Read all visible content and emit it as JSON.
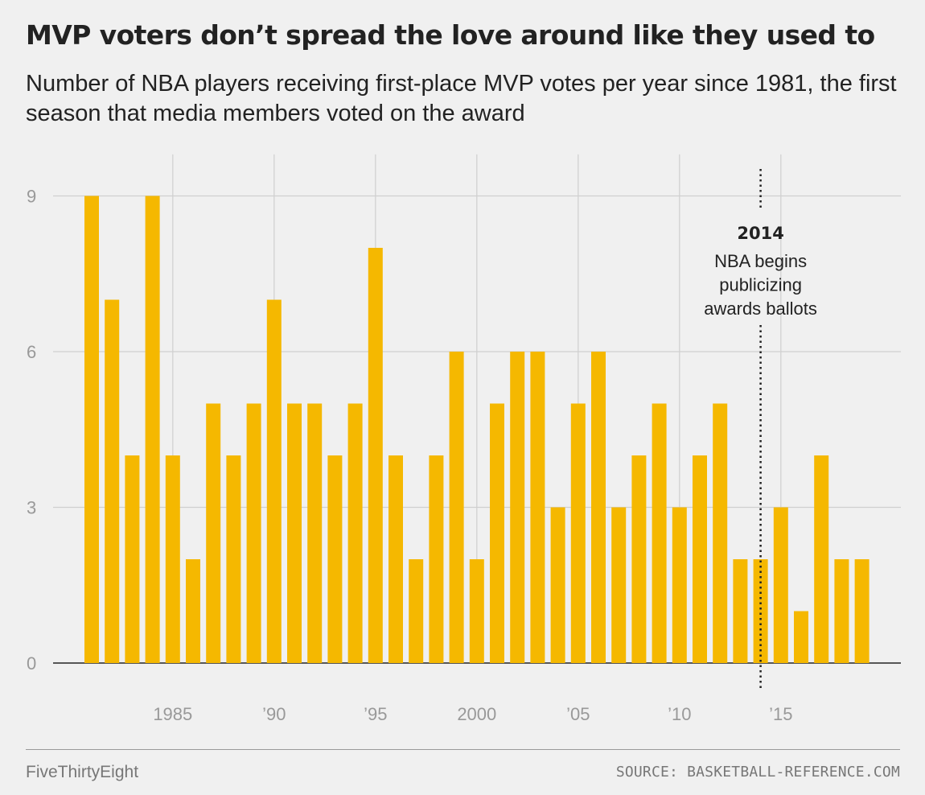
{
  "header": {
    "title": "MVP voters don’t spread the love around like they used to",
    "subtitle": "Number of NBA players receiving first-place MVP votes per year since 1981, the first season that media members voted on the award"
  },
  "footer": {
    "brand": "FiveThirtyEight",
    "source": "SOURCE: BASKETBALL-REFERENCE.COM"
  },
  "chart_data": {
    "type": "bar",
    "x": [
      1981,
      1982,
      1983,
      1984,
      1985,
      1986,
      1987,
      1988,
      1989,
      1990,
      1991,
      1992,
      1993,
      1994,
      1995,
      1996,
      1997,
      1998,
      1999,
      2000,
      2001,
      2002,
      2003,
      2004,
      2005,
      2006,
      2007,
      2008,
      2009,
      2010,
      2011,
      2012,
      2013,
      2014,
      2015,
      2016,
      2017,
      2018,
      2019
    ],
    "values": [
      9,
      7,
      4,
      9,
      4,
      2,
      5,
      4,
      5,
      7,
      5,
      5,
      4,
      5,
      8,
      4,
      2,
      4,
      6,
      2,
      5,
      6,
      6,
      3,
      5,
      6,
      3,
      4,
      5,
      3,
      4,
      5,
      2,
      2,
      3,
      1,
      4,
      2,
      2
    ],
    "bar_color": "#f5b800",
    "ylim": [
      0,
      9.8
    ],
    "y_ticks": [
      {
        "value": 0,
        "label": "0"
      },
      {
        "value": 3,
        "label": "3"
      },
      {
        "value": 6,
        "label": "6"
      },
      {
        "value": 9,
        "label": "9"
      }
    ],
    "x_ticks": [
      {
        "value": 1985,
        "label": "1985"
      },
      {
        "value": 1990,
        "label": "’90"
      },
      {
        "value": 1995,
        "label": "’95"
      },
      {
        "value": 2000,
        "label": "2000"
      },
      {
        "value": 2005,
        "label": "’05"
      },
      {
        "value": 2010,
        "label": "’10"
      },
      {
        "value": 2015,
        "label": "’15"
      }
    ],
    "grid": true,
    "annotation": {
      "x": 2014,
      "year": "2014",
      "lines": [
        "NBA begins",
        "publicizing",
        "awards ballots"
      ]
    }
  }
}
